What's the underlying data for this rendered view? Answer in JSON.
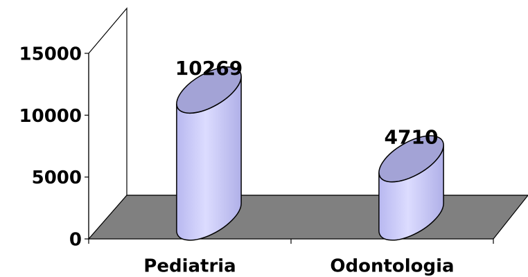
{
  "chart_data": {
    "type": "bar3d",
    "categories": [
      "Pediatria",
      "Odontologia"
    ],
    "values": [
      10269,
      4710
    ],
    "color": "#ccccff",
    "top_color": "#a3a3d6",
    "floor_color": "#808080",
    "ylim": [
      0,
      15000
    ],
    "yticks": [
      0,
      5000,
      10000,
      15000
    ]
  }
}
